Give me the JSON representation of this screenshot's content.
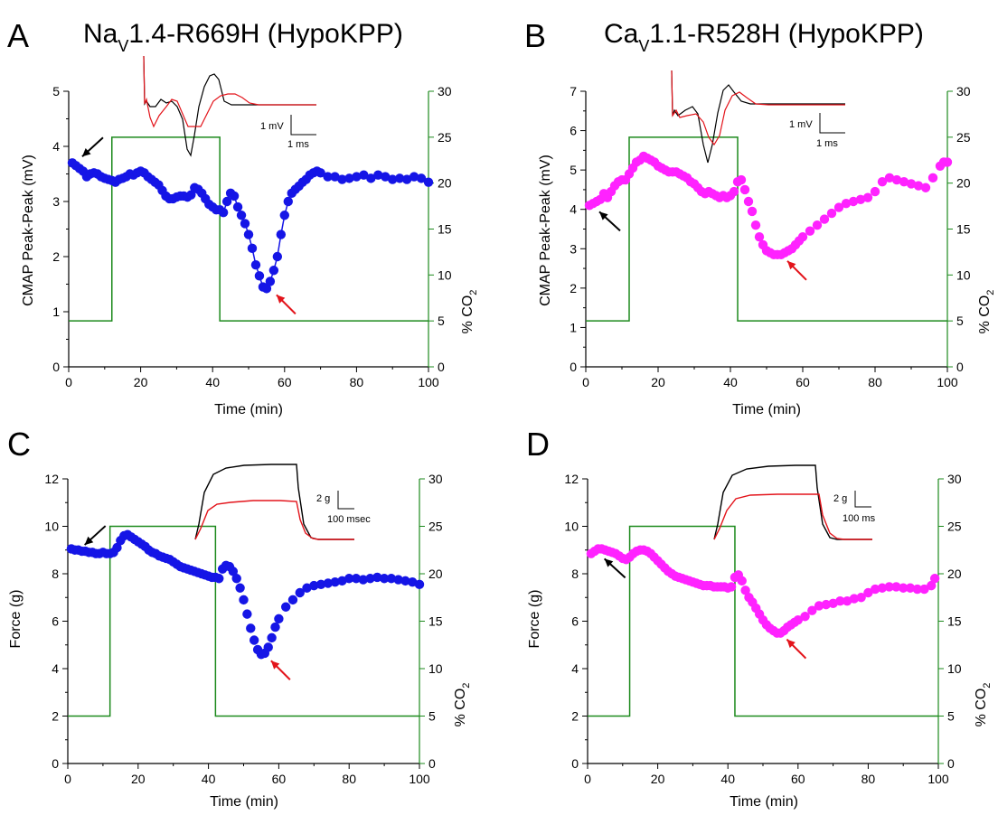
{
  "colors": {
    "blue": "#1515e6",
    "magenta": "#ff22ff",
    "co2_green": "#1d8a1d",
    "trace_red": "#e3141b",
    "trace_black": "#000000"
  },
  "chart_data": [
    {
      "type": "scatter",
      "panel": "A",
      "title": "Na",
      "title_sub": "V",
      "title_rest": "1.4-R669H (HypoKPP)",
      "xlabel": "Time (min)",
      "ylabel": "CMAP Peak-Peak (mV)",
      "y2label": "% CO",
      "y2label_sub": "2",
      "xlim": [
        0,
        100
      ],
      "ylim": [
        0,
        5
      ],
      "y2lim": [
        0,
        30
      ],
      "xticks": [
        0,
        20,
        40,
        60,
        80,
        100
      ],
      "yticks": [
        0,
        1,
        2,
        3,
        4,
        5
      ],
      "y2ticks": [
        0,
        5,
        10,
        15,
        20,
        25,
        30
      ],
      "series_color": "blue",
      "marker_connected": true,
      "series": [
        {
          "x": [
            1,
            2,
            3,
            4,
            5,
            6,
            7,
            8,
            9,
            10,
            11,
            12,
            13,
            14,
            15,
            16,
            17,
            18,
            19,
            20,
            21,
            22,
            23,
            24,
            25,
            26,
            27,
            28,
            29,
            30,
            31,
            32,
            33,
            34,
            35,
            36,
            37,
            38,
            39,
            40,
            41,
            42,
            43,
            44,
            45,
            46,
            47,
            48,
            49,
            50,
            51,
            52,
            53,
            54,
            55,
            56,
            57,
            58,
            59,
            60,
            61,
            62,
            63,
            64,
            65,
            66,
            67,
            68,
            69,
            70,
            72,
            74,
            76,
            78,
            80,
            82,
            84,
            86,
            88,
            90,
            92,
            94,
            96,
            98,
            100
          ],
          "y": [
            3.7,
            3.65,
            3.6,
            3.55,
            3.45,
            3.5,
            3.52,
            3.5,
            3.45,
            3.42,
            3.4,
            3.38,
            3.35,
            3.4,
            3.42,
            3.45,
            3.5,
            3.48,
            3.52,
            3.55,
            3.52,
            3.45,
            3.4,
            3.35,
            3.3,
            3.2,
            3.1,
            3.05,
            3.05,
            3.08,
            3.1,
            3.1,
            3.08,
            3.12,
            3.25,
            3.22,
            3.15,
            3.05,
            2.95,
            2.9,
            2.85,
            2.85,
            2.8,
            3.0,
            3.15,
            3.1,
            2.9,
            2.75,
            2.6,
            2.4,
            2.15,
            1.85,
            1.65,
            1.45,
            1.42,
            1.55,
            1.75,
            2.0,
            2.4,
            2.75,
            3.0,
            3.15,
            3.22,
            3.28,
            3.35,
            3.4,
            3.48,
            3.52,
            3.55,
            3.52,
            3.45,
            3.45,
            3.4,
            3.42,
            3.45,
            3.48,
            3.42,
            3.48,
            3.45,
            3.4,
            3.42,
            3.4,
            3.45,
            3.42,
            3.35
          ]
        }
      ],
      "co2_steps": [
        [
          0,
          5
        ],
        [
          12,
          5
        ],
        [
          12,
          25
        ],
        [
          42,
          25
        ],
        [
          42,
          5
        ],
        [
          100,
          5
        ]
      ],
      "inset": {
        "scale_y_label": "1 mV",
        "scale_x_label": "1 ms"
      },
      "arrows": [
        {
          "color": "trace_black",
          "at": [
            2,
            3.7
          ]
        },
        {
          "color": "trace_red",
          "at": [
            56,
            1.42
          ]
        }
      ]
    },
    {
      "type": "scatter",
      "panel": "B",
      "title": "Ca",
      "title_sub": "V",
      "title_rest": "1.1-R528H (HypoKPP)",
      "xlabel": "Time (min)",
      "ylabel": "CMAP Peak-Peak (mV)",
      "y2label": "% CO",
      "y2label_sub": "2",
      "xlim": [
        0,
        100
      ],
      "ylim": [
        0,
        7
      ],
      "y2lim": [
        0,
        30
      ],
      "xticks": [
        0,
        20,
        40,
        60,
        80,
        100
      ],
      "yticks": [
        0,
        1,
        2,
        3,
        4,
        5,
        6,
        7
      ],
      "y2ticks": [
        0,
        5,
        10,
        15,
        20,
        25,
        30
      ],
      "series_color": "magenta",
      "marker_connected": false,
      "series": [
        {
          "x": [
            1,
            2,
            3,
            4,
            5,
            6,
            7,
            8,
            9,
            10,
            11,
            12,
            13,
            14,
            15,
            16,
            17,
            18,
            19,
            20,
            21,
            22,
            23,
            24,
            25,
            26,
            27,
            28,
            29,
            30,
            31,
            32,
            33,
            34,
            35,
            36,
            37,
            38,
            39,
            40,
            41,
            42,
            43,
            44,
            45,
            46,
            47,
            48,
            49,
            50,
            51,
            52,
            53,
            54,
            55,
            56,
            57,
            58,
            59,
            60,
            62,
            64,
            66,
            68,
            70,
            72,
            74,
            76,
            78,
            80,
            82,
            84,
            86,
            88,
            90,
            92,
            94,
            96,
            98,
            99,
            100
          ],
          "y": [
            4.1,
            4.15,
            4.2,
            4.25,
            4.4,
            4.3,
            4.45,
            4.6,
            4.7,
            4.75,
            4.75,
            4.9,
            5.05,
            5.2,
            5.25,
            5.35,
            5.3,
            5.25,
            5.2,
            5.1,
            5.05,
            5.0,
            4.95,
            4.95,
            4.95,
            4.9,
            4.85,
            4.8,
            4.7,
            4.65,
            4.55,
            4.45,
            4.4,
            4.45,
            4.4,
            4.35,
            4.3,
            4.35,
            4.3,
            4.35,
            4.45,
            4.7,
            4.75,
            4.5,
            4.2,
            3.95,
            3.6,
            3.3,
            3.1,
            2.95,
            2.9,
            2.85,
            2.85,
            2.85,
            2.9,
            2.95,
            3.0,
            3.1,
            3.2,
            3.3,
            3.45,
            3.6,
            3.75,
            3.9,
            4.05,
            4.15,
            4.2,
            4.25,
            4.3,
            4.45,
            4.7,
            4.8,
            4.75,
            4.7,
            4.65,
            4.6,
            4.55,
            4.8,
            5.1,
            5.2,
            5.2
          ]
        }
      ],
      "co2_steps": [
        [
          0,
          5
        ],
        [
          12,
          5
        ],
        [
          12,
          25
        ],
        [
          42,
          25
        ],
        [
          42,
          5
        ],
        [
          100,
          5
        ]
      ],
      "inset": {
        "scale_y_label": "1 mV",
        "scale_x_label": "1 ms"
      },
      "arrows": [
        {
          "color": "trace_black",
          "at": [
            2,
            4.1
          ]
        },
        {
          "color": "trace_red",
          "at": [
            54,
            2.85
          ]
        }
      ]
    },
    {
      "type": "scatter",
      "panel": "C",
      "title": "",
      "xlabel": "Time (min)",
      "ylabel": "Force (g)",
      "y2label": "% CO",
      "y2label_sub": "2",
      "xlim": [
        0,
        100
      ],
      "ylim": [
        0,
        12
      ],
      "y2lim": [
        0,
        30
      ],
      "xticks": [
        0,
        20,
        40,
        60,
        80,
        100
      ],
      "yticks": [
        0,
        2,
        4,
        6,
        8,
        10,
        12
      ],
      "y2ticks": [
        0,
        5,
        10,
        15,
        20,
        25,
        30
      ],
      "series_color": "blue",
      "marker_connected": false,
      "series": [
        {
          "x": [
            1,
            2,
            3,
            4,
            5,
            6,
            7,
            8,
            9,
            10,
            11,
            12,
            13,
            14,
            15,
            16,
            17,
            18,
            19,
            20,
            21,
            22,
            23,
            24,
            25,
            26,
            27,
            28,
            29,
            30,
            31,
            32,
            33,
            34,
            35,
            36,
            37,
            38,
            39,
            40,
            41,
            42,
            43,
            44,
            45,
            46,
            47,
            48,
            49,
            50,
            51,
            52,
            53,
            54,
            55,
            56,
            57,
            58,
            59,
            60,
            62,
            64,
            66,
            68,
            70,
            72,
            74,
            76,
            78,
            80,
            82,
            84,
            86,
            88,
            90,
            92,
            94,
            96,
            98,
            100
          ],
          "y": [
            9.05,
            9.0,
            9.0,
            8.95,
            8.95,
            8.9,
            8.9,
            8.85,
            8.85,
            8.9,
            8.85,
            8.85,
            8.9,
            9.1,
            9.4,
            9.6,
            9.65,
            9.55,
            9.45,
            9.35,
            9.25,
            9.15,
            9.0,
            8.9,
            8.85,
            8.75,
            8.7,
            8.65,
            8.6,
            8.5,
            8.4,
            8.3,
            8.25,
            8.2,
            8.15,
            8.1,
            8.05,
            8.0,
            7.95,
            7.9,
            7.85,
            7.85,
            7.8,
            8.2,
            8.35,
            8.3,
            8.1,
            7.8,
            7.4,
            6.9,
            6.3,
            5.7,
            5.2,
            4.8,
            4.6,
            4.65,
            4.9,
            5.3,
            5.75,
            6.1,
            6.6,
            6.9,
            7.2,
            7.4,
            7.5,
            7.55,
            7.6,
            7.65,
            7.7,
            7.8,
            7.8,
            7.75,
            7.8,
            7.85,
            7.8,
            7.8,
            7.75,
            7.7,
            7.65,
            7.55
          ]
        }
      ],
      "co2_steps": [
        [
          0,
          5
        ],
        [
          12,
          5
        ],
        [
          12,
          25
        ],
        [
          42,
          25
        ],
        [
          42,
          5
        ],
        [
          100,
          5
        ]
      ],
      "inset": {
        "scale_y_label": "2 g",
        "scale_x_label": "100 msec"
      },
      "arrows": [
        {
          "color": "trace_black",
          "at": [
            3,
            8.95
          ]
        },
        {
          "color": "trace_red",
          "at": [
            56,
            4.6
          ]
        }
      ]
    },
    {
      "type": "scatter",
      "panel": "D",
      "title": "",
      "xlabel": "Time (min)",
      "ylabel": "Force (g)",
      "y2label": "% CO",
      "y2label_sub": "2",
      "xlim": [
        0,
        100
      ],
      "ylim": [
        0,
        12
      ],
      "y2lim": [
        0,
        30
      ],
      "xticks": [
        0,
        20,
        40,
        60,
        80,
        100
      ],
      "yticks": [
        0,
        2,
        4,
        6,
        8,
        10,
        12
      ],
      "y2ticks": [
        0,
        5,
        10,
        15,
        20,
        25,
        30
      ],
      "series_color": "magenta",
      "marker_connected": false,
      "series": [
        {
          "x": [
            1,
            2,
            3,
            4,
            5,
            6,
            7,
            8,
            9,
            10,
            11,
            12,
            13,
            14,
            15,
            16,
            17,
            18,
            19,
            20,
            21,
            22,
            23,
            24,
            25,
            26,
            27,
            28,
            29,
            30,
            31,
            32,
            33,
            34,
            35,
            36,
            37,
            38,
            39,
            40,
            41,
            42,
            43,
            44,
            45,
            46,
            47,
            48,
            49,
            50,
            51,
            52,
            53,
            54,
            55,
            56,
            57,
            58,
            59,
            60,
            62,
            64,
            66,
            68,
            70,
            72,
            74,
            76,
            78,
            80,
            82,
            84,
            86,
            88,
            90,
            92,
            94,
            96,
            98,
            99
          ],
          "y": [
            8.85,
            8.95,
            9.05,
            9.05,
            9.0,
            8.95,
            8.9,
            8.85,
            8.75,
            8.65,
            8.6,
            8.7,
            8.85,
            8.95,
            9.0,
            9.0,
            8.95,
            8.85,
            8.7,
            8.55,
            8.4,
            8.25,
            8.1,
            8.0,
            7.9,
            7.85,
            7.8,
            7.75,
            7.7,
            7.65,
            7.6,
            7.55,
            7.5,
            7.5,
            7.5,
            7.45,
            7.45,
            7.45,
            7.45,
            7.4,
            7.45,
            7.85,
            7.95,
            7.7,
            7.3,
            7.0,
            6.8,
            6.55,
            6.3,
            6.05,
            5.85,
            5.7,
            5.6,
            5.5,
            5.5,
            5.6,
            5.75,
            5.85,
            5.95,
            6.05,
            6.2,
            6.45,
            6.65,
            6.7,
            6.75,
            6.85,
            6.85,
            6.95,
            7.0,
            7.2,
            7.35,
            7.4,
            7.45,
            7.45,
            7.4,
            7.4,
            7.35,
            7.35,
            7.5,
            7.8
          ]
        }
      ],
      "co2_steps": [
        [
          0,
          5
        ],
        [
          12,
          5
        ],
        [
          12,
          25
        ],
        [
          42,
          25
        ],
        [
          42,
          5
        ],
        [
          100,
          5
        ]
      ],
      "inset": {
        "scale_y_label": "2 g",
        "scale_x_label": "100 ms"
      },
      "arrows": [
        {
          "color": "trace_black",
          "at": [
            3,
            8.9
          ]
        },
        {
          "color": "trace_red",
          "at": [
            55,
            5.5
          ]
        }
      ]
    }
  ]
}
